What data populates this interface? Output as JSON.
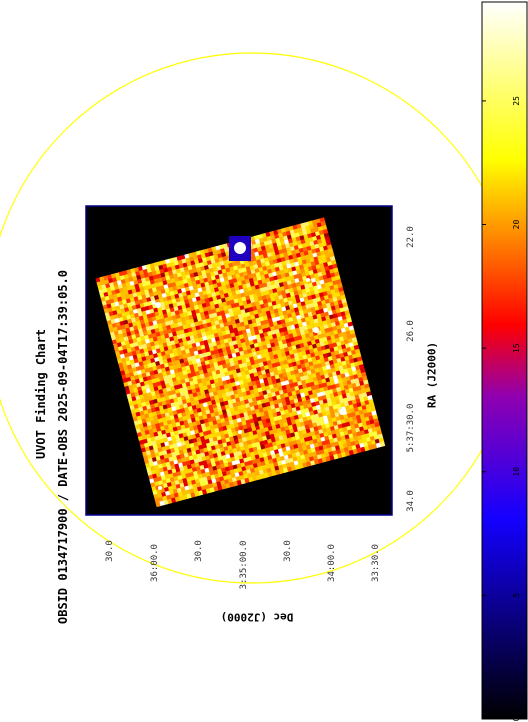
{
  "title_line1": "UVOT Finding Chart",
  "title_line2": "OBSID 0134717900 / DATE-OBS 2025-09-04T17:39:05.0",
  "chart_data": {
    "type": "heatmap",
    "xlabel": "RA (J2000)",
    "ylabel": "Dec (J2000)",
    "ra_tick_labels": [
      "34.0",
      "5:37:30.0",
      "26.0",
      "22.0"
    ],
    "dec_tick_labels": [
      "30.0",
      "36:00.0",
      "30.0",
      "3:35:00.0",
      "30.0",
      "34:00.0",
      "33:30.0"
    ],
    "colorbar_ticks": [
      0,
      5,
      10,
      15,
      20,
      25
    ],
    "colorbar_range": [
      0,
      29
    ],
    "colormap": [
      "#000000",
      "#0000ff",
      "#ff0000",
      "#ffff00",
      "#ffffff"
    ],
    "circle_color": "#ffff00",
    "frame_color": "#00008b",
    "background": "#000000"
  }
}
